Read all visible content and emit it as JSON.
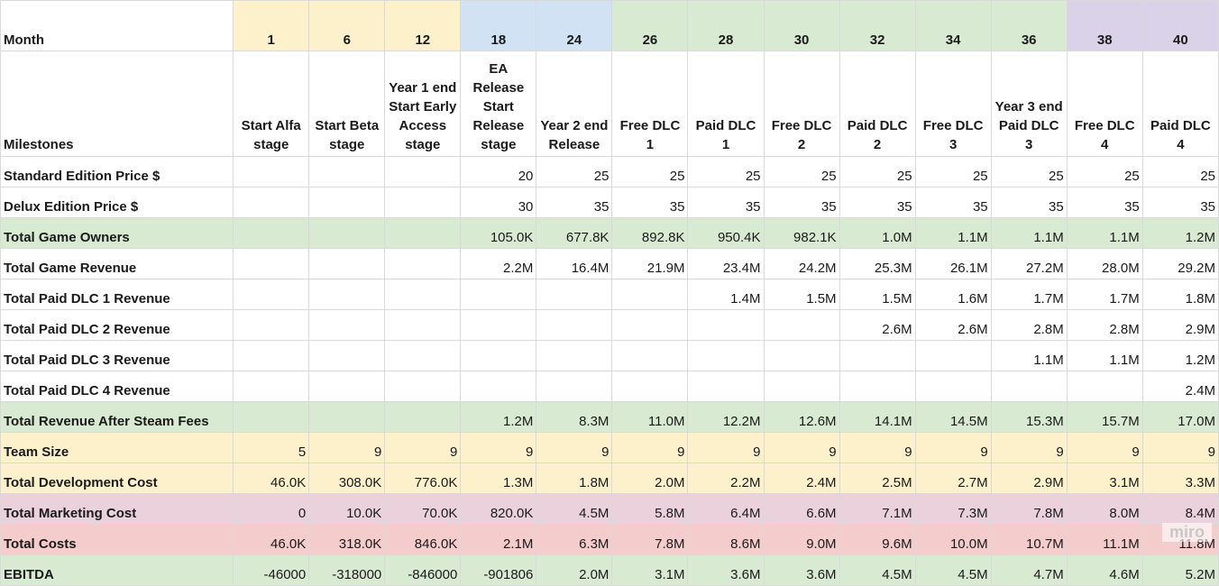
{
  "colors": {
    "yellow": "#fdf1cc",
    "blue": "#d0e2f3",
    "green": "#d9ead3",
    "purple": "#d9d2e9",
    "pink": "#ead1dc",
    "red": "#f4cccc",
    "white": "#ffffff"
  },
  "month_label": "Month",
  "milestones_label": "Milestones",
  "months": [
    "1",
    "6",
    "12",
    "18",
    "24",
    "26",
    "28",
    "30",
    "32",
    "34",
    "36",
    "38",
    "40"
  ],
  "month_colors": [
    "yellow",
    "yellow",
    "yellow",
    "blue",
    "blue",
    "green",
    "green",
    "green",
    "green",
    "green",
    "green",
    "purple",
    "purple"
  ],
  "milestones": [
    "Start Alfa stage",
    "Start Beta stage",
    "Year 1 end Start Early Access stage",
    "EA Release Start Release stage",
    "Year 2 end Release",
    "Free DLC 1",
    "Paid DLC 1",
    "Free DLC 2",
    "Paid DLC 2",
    "Free DLC 3",
    "Year 3 end Paid DLC 3",
    "Free DLC 4",
    "Paid DLC 4"
  ],
  "rows": [
    {
      "label": "Standard Edition Price $",
      "color": "white",
      "values": [
        "",
        "",
        "",
        "20",
        "25",
        "25",
        "25",
        "25",
        "25",
        "25",
        "25",
        "25",
        "25"
      ]
    },
    {
      "label": "Delux Edition Price $",
      "color": "white",
      "values": [
        "",
        "",
        "",
        "30",
        "35",
        "35",
        "35",
        "35",
        "35",
        "35",
        "35",
        "35",
        "35"
      ]
    },
    {
      "label": "Total Game Owners",
      "color": "green",
      "values": [
        "",
        "",
        "",
        "105.0K",
        "677.8K",
        "892.8K",
        "950.4K",
        "982.1K",
        "1.0M",
        "1.1M",
        "1.1M",
        "1.1M",
        "1.2M"
      ]
    },
    {
      "label": "Total Game Revenue",
      "color": "white",
      "values": [
        "",
        "",
        "",
        "2.2M",
        "16.4M",
        "21.9M",
        "23.4M",
        "24.2M",
        "25.3M",
        "26.1M",
        "27.2M",
        "28.0M",
        "29.2M"
      ]
    },
    {
      "label": "Total Paid DLC 1 Revenue",
      "color": "white",
      "values": [
        "",
        "",
        "",
        "",
        "",
        "",
        "1.4M",
        "1.5M",
        "1.5M",
        "1.6M",
        "1.7M",
        "1.7M",
        "1.8M"
      ]
    },
    {
      "label": "Total Paid DLC 2 Revenue",
      "color": "white",
      "values": [
        "",
        "",
        "",
        "",
        "",
        "",
        "",
        "",
        "2.6M",
        "2.6M",
        "2.8M",
        "2.8M",
        "2.9M"
      ]
    },
    {
      "label": "Total Paid DLC 3 Revenue",
      "color": "white",
      "values": [
        "",
        "",
        "",
        "",
        "",
        "",
        "",
        "",
        "",
        "",
        "1.1M",
        "1.1M",
        "1.2M"
      ]
    },
    {
      "label": "Total Paid DLC 4 Revenue",
      "color": "white",
      "values": [
        "",
        "",
        "",
        "",
        "",
        "",
        "",
        "",
        "",
        "",
        "",
        "",
        "2.4M"
      ]
    },
    {
      "label": "Total Revenue After Steam Fees",
      "color": "green",
      "values": [
        "",
        "",
        "",
        "1.2M",
        "8.3M",
        "11.0M",
        "12.2M",
        "12.6M",
        "14.1M",
        "14.5M",
        "15.3M",
        "15.7M",
        "17.0M"
      ]
    },
    {
      "label": "Team Size",
      "color": "yellow",
      "values": [
        "5",
        "9",
        "9",
        "9",
        "9",
        "9",
        "9",
        "9",
        "9",
        "9",
        "9",
        "9",
        "9"
      ]
    },
    {
      "label": "Total Development Cost",
      "color": "yellow",
      "values": [
        "46.0K",
        "308.0K",
        "776.0K",
        "1.3M",
        "1.8M",
        "2.0M",
        "2.2M",
        "2.4M",
        "2.5M",
        "2.7M",
        "2.9M",
        "3.1M",
        "3.3M"
      ]
    },
    {
      "label": "Total Marketing Cost",
      "color": "pink",
      "values": [
        "0",
        "10.0K",
        "70.0K",
        "820.0K",
        "4.5M",
        "5.8M",
        "6.4M",
        "6.6M",
        "7.1M",
        "7.3M",
        "7.8M",
        "8.0M",
        "8.4M"
      ]
    },
    {
      "label": "Total Costs",
      "color": "red",
      "values": [
        "46.0K",
        "318.0K",
        "846.0K",
        "2.1M",
        "6.3M",
        "7.8M",
        "8.6M",
        "9.0M",
        "9.6M",
        "10.0M",
        "10.7M",
        "11.1M",
        "11.8M"
      ]
    },
    {
      "label": "EBITDA",
      "color": "green",
      "values": [
        "-46000",
        "-318000",
        "-846000",
        "-901806",
        "2.0M",
        "3.1M",
        "3.6M",
        "3.6M",
        "4.5M",
        "4.5M",
        "4.7M",
        "4.6M",
        "5.2M"
      ]
    }
  ],
  "watermark": "miro"
}
